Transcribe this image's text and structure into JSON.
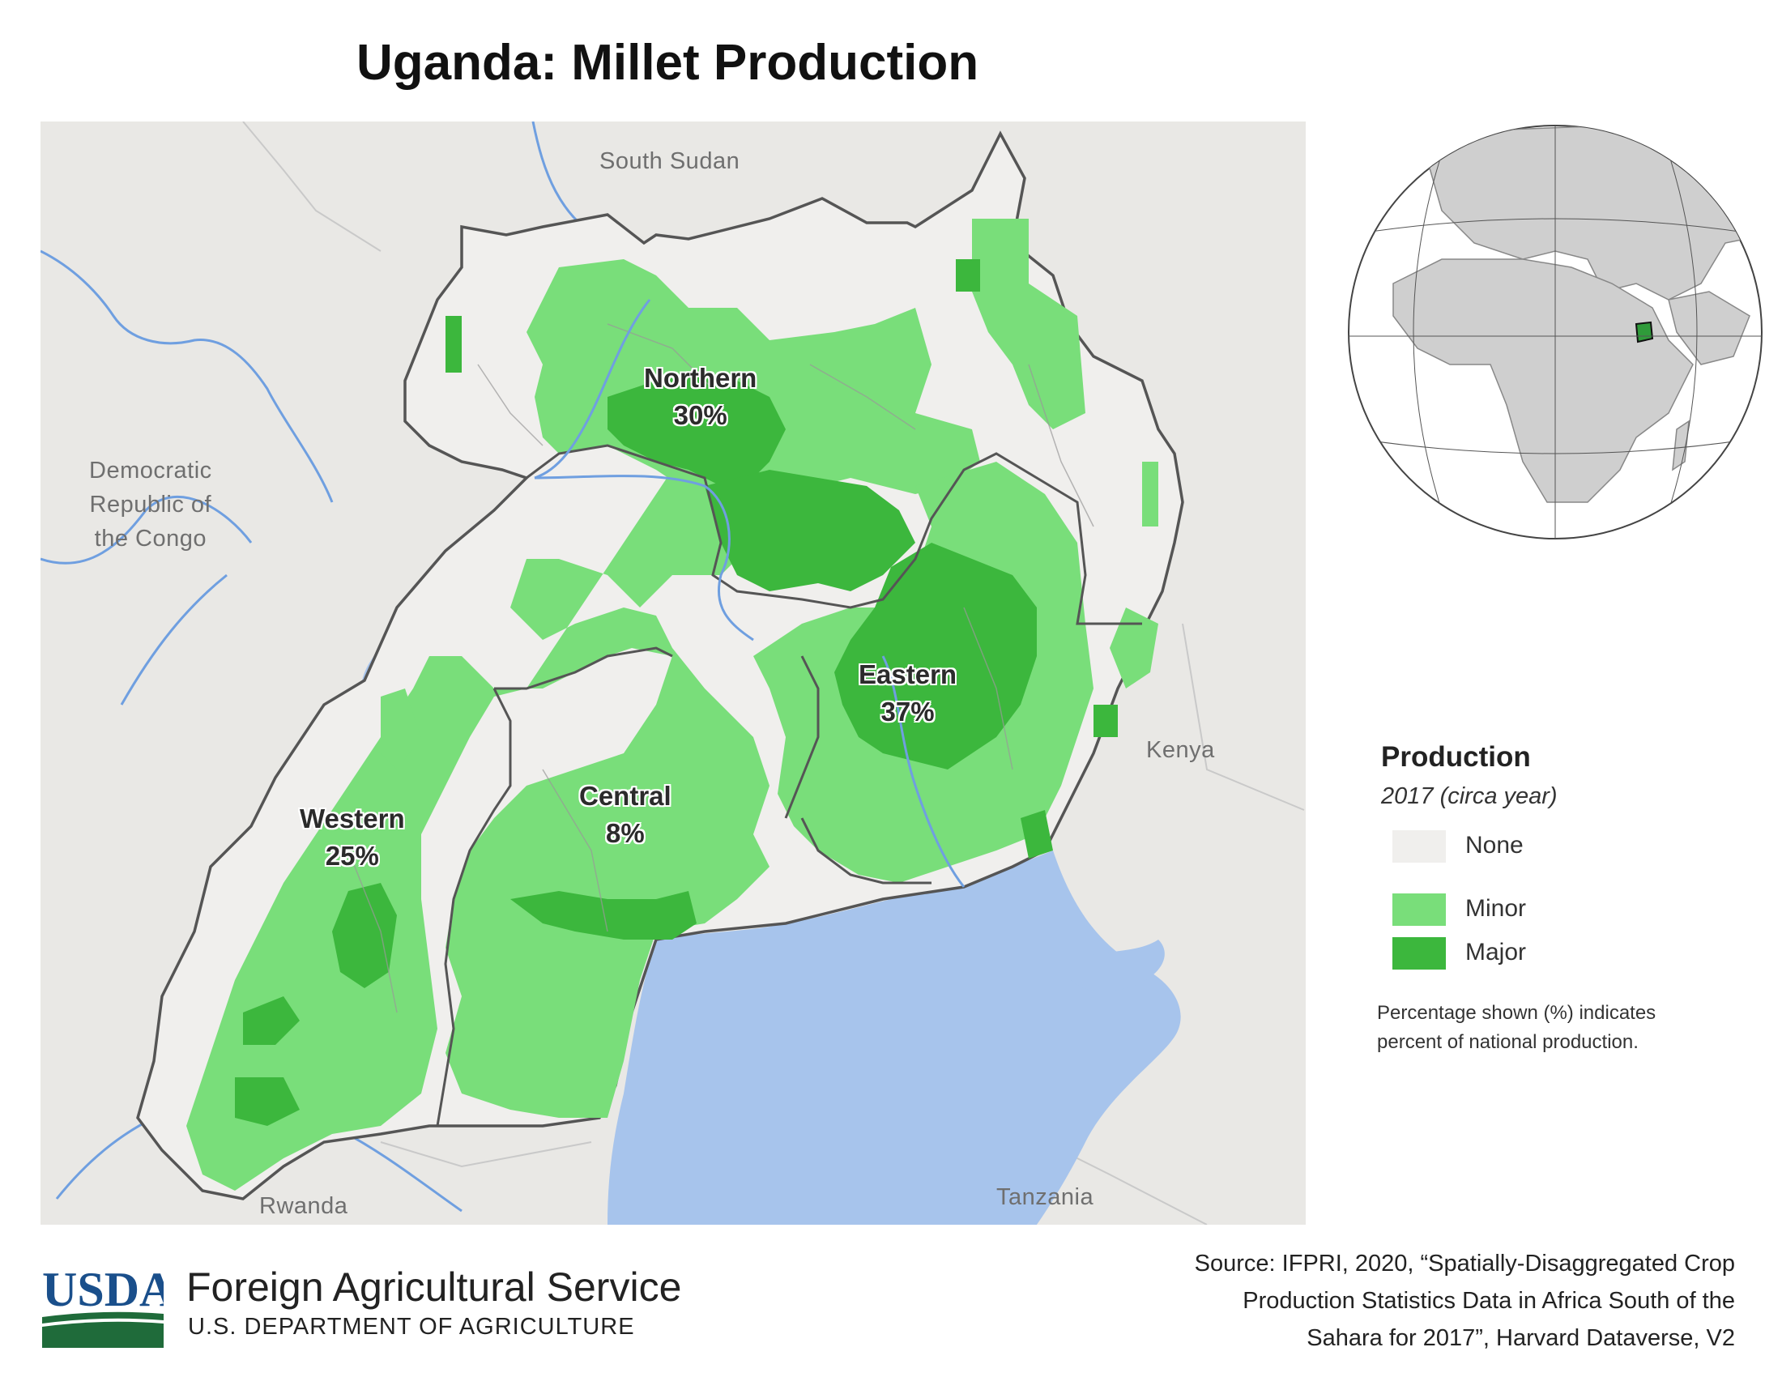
{
  "title": "Uganda: Millet Production",
  "map": {
    "countries": {
      "south_sudan": "South Sudan",
      "drc_line1": "Democratic",
      "drc_line2": "Republic of",
      "drc_line3": "the Congo",
      "kenya": "Kenya",
      "tanzania": "Tanzania",
      "rwanda": "Rwanda"
    },
    "regions": [
      {
        "name": "Northern",
        "share": "30%",
        "share_value": 30
      },
      {
        "name": "Eastern",
        "share": "37%",
        "share_value": 37
      },
      {
        "name": "Central",
        "share": "8%",
        "share_value": 8
      },
      {
        "name": "Western",
        "share": "25%",
        "share_value": 25
      }
    ],
    "highlight_country": "Uganda"
  },
  "legend": {
    "title": "Production",
    "subtitle": "2017 (circa year)",
    "items": [
      {
        "label": "None",
        "color": "#f0efed"
      },
      {
        "label": "Minor",
        "color": "#79de7a"
      },
      {
        "label": "Major",
        "color": "#3cb73d"
      }
    ],
    "note_line1": "Percentage shown (%) indicates",
    "note_line2": "percent of national production."
  },
  "colors": {
    "water": "#a7c4ec",
    "background_land": "#e9e8e5",
    "uganda_land": "#f0efed",
    "minor": "#79de7a",
    "major": "#3cb73d",
    "usda_blue": "#1a4f8b",
    "usda_green": "#1f6b3a"
  },
  "footer": {
    "logo_text": "USDA",
    "agency": "Foreign Agricultural Service",
    "department": "U.S. DEPARTMENT OF AGRICULTURE",
    "source_line1": "Source: IFPRI, 2020, “Spatially-Disaggregated Crop",
    "source_line2": "Production Statistics Data in Africa South of the",
    "source_line3": "Sahara for 2017”, Harvard Dataverse, V2"
  }
}
